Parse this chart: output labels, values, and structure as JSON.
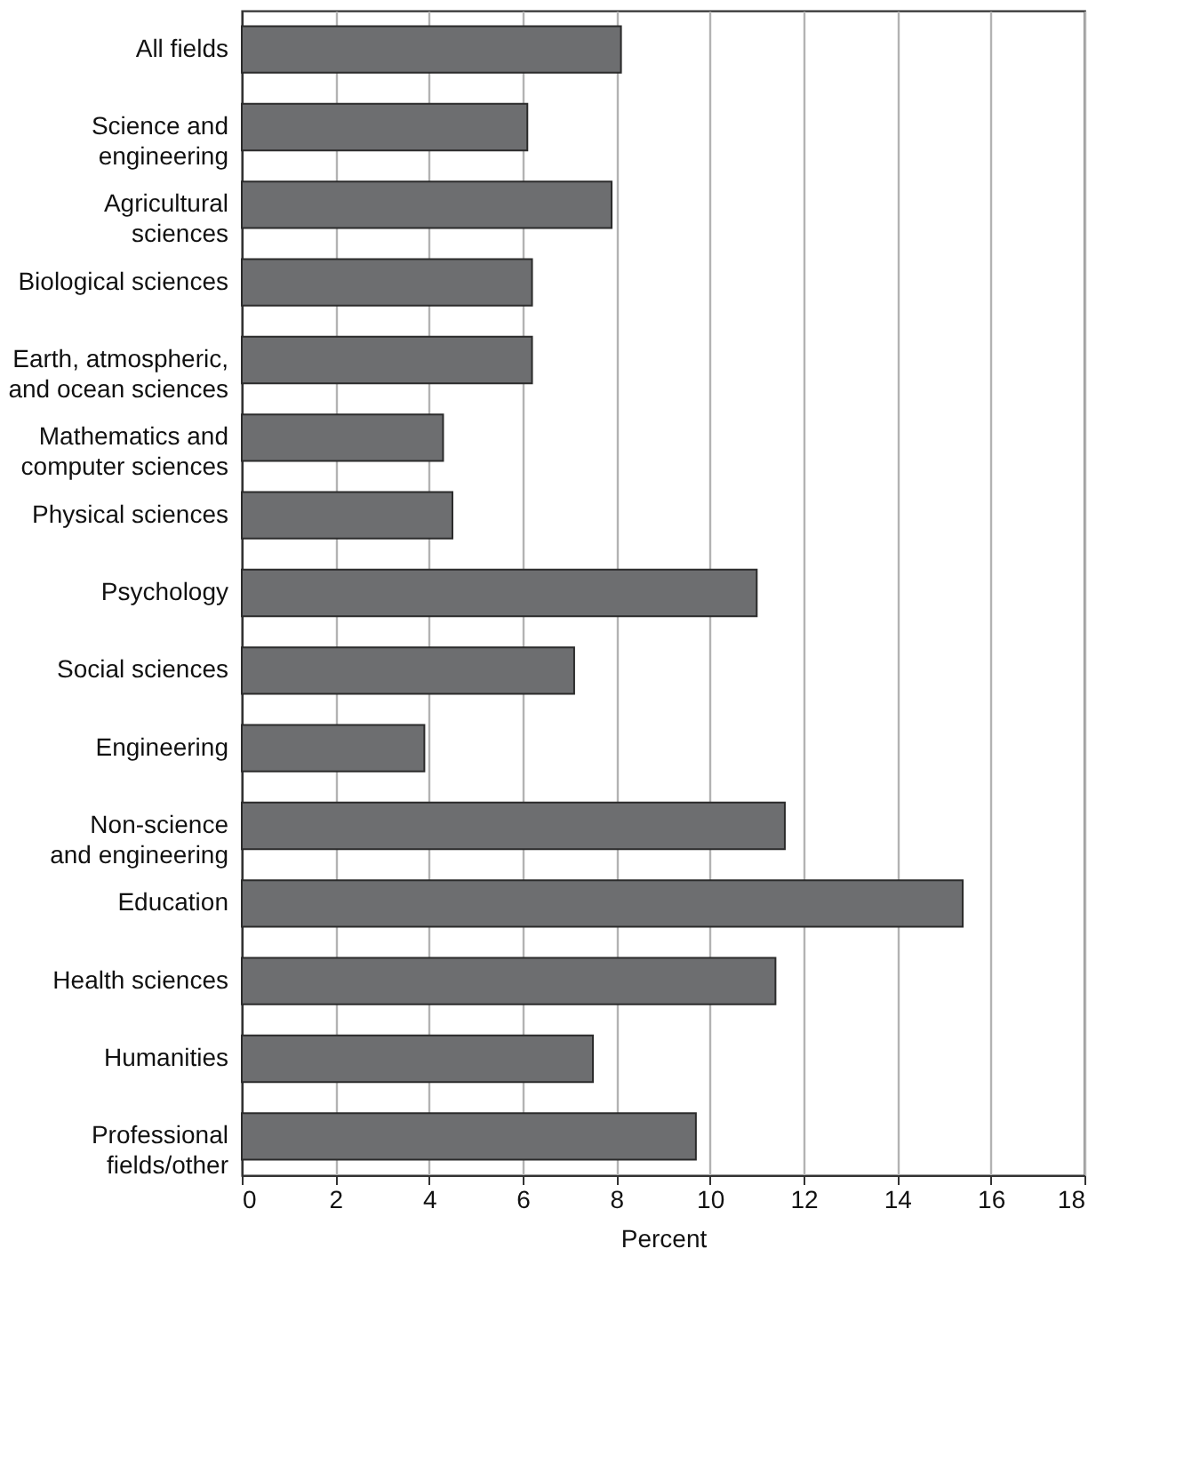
{
  "chart_data": {
    "type": "bar",
    "orientation": "horizontal",
    "xlabel": "Percent",
    "categories": [
      "All fields",
      "Science and\nengineering",
      "Agricultural\nsciences",
      "Biological sciences",
      "Earth, atmospheric,\nand ocean sciences",
      "Mathematics and\ncomputer sciences",
      "Physical sciences",
      "Psychology",
      "Social sciences",
      "Engineering",
      "Non-science\nand engineering",
      "Education",
      "Health sciences",
      "Humanities",
      "Professional\nfields/other"
    ],
    "values": [
      8.1,
      6.1,
      7.9,
      6.2,
      6.2,
      4.3,
      4.5,
      11.0,
      7.1,
      3.9,
      11.6,
      15.4,
      11.4,
      7.5,
      9.7
    ],
    "color": "#6d6e70",
    "xlim": [
      0,
      18
    ],
    "xticks": [
      0,
      2,
      4,
      6,
      8,
      10,
      12,
      14,
      16,
      18
    ],
    "grid": "x"
  }
}
